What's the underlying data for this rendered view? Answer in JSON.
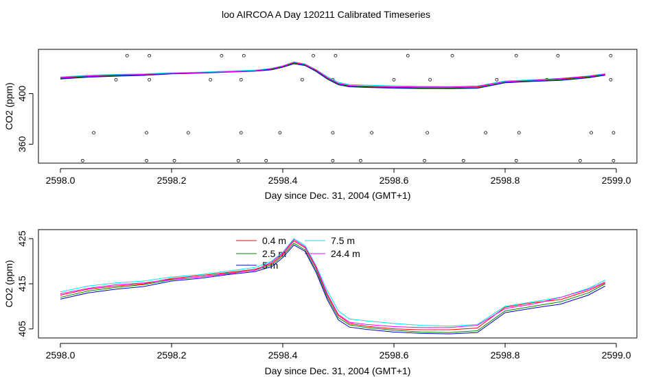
{
  "title": "loo AIRCOA A  Day 120211  Calibrated Timeseries",
  "colors": {
    "0.4 m": "#ff0000",
    "2.5 m": "#008000",
    "5 m": "#0000c8",
    "7.5 m": "#00e5ee",
    "24.4 m": "#ff00ff"
  },
  "chart_data": [
    {
      "type": "line",
      "xlabel": "Day since Dec. 31, 2004 (GMT+1)",
      "ylabel": "CO2 (ppm)",
      "xlim": [
        2598.0,
        2599.0
      ],
      "ylim": [
        345,
        435
      ],
      "xticks": [
        2598.0,
        2598.2,
        2598.4,
        2598.6,
        2598.8,
        2599.0
      ],
      "xtick_labels": [
        "2598.0",
        "2598.2",
        "2598.4",
        "2598.6",
        "2598.8",
        "2599.0"
      ],
      "yticks": [
        360,
        400
      ],
      "ytick_labels": [
        "360",
        "400"
      ],
      "x": [
        2598.0,
        2598.05,
        2598.1,
        2598.15,
        2598.2,
        2598.25,
        2598.3,
        2598.35,
        2598.38,
        2598.4,
        2598.42,
        2598.44,
        2598.46,
        2598.48,
        2598.5,
        2598.52,
        2598.55,
        2598.6,
        2598.65,
        2598.7,
        2598.75,
        2598.8,
        2598.85,
        2598.9,
        2598.95,
        2598.98
      ],
      "series": [
        {
          "name": "0.4 m",
          "values": [
            412.5,
            413.8,
            414.5,
            415.0,
            416.2,
            416.8,
            417.5,
            418.2,
            419.5,
            421.5,
            424.5,
            423.0,
            418.5,
            412.5,
            408.0,
            406.2,
            405.6,
            405.0,
            404.8,
            404.8,
            405.2,
            409.8,
            410.8,
            411.5,
            413.5,
            415.2
          ]
        },
        {
          "name": "2.5 m",
          "values": [
            412.0,
            413.4,
            414.2,
            414.8,
            415.9,
            416.5,
            417.3,
            418.0,
            419.2,
            421.2,
            424.0,
            422.5,
            418.0,
            412.0,
            407.5,
            405.9,
            405.3,
            404.7,
            404.3,
            404.2,
            404.6,
            409.0,
            410.0,
            411.0,
            413.0,
            415.0
          ]
        },
        {
          "name": "5 m",
          "values": [
            411.6,
            413.0,
            413.8,
            414.4,
            415.6,
            416.2,
            417.0,
            417.7,
            418.8,
            420.8,
            423.6,
            422.2,
            417.5,
            411.5,
            407.0,
            405.4,
            404.9,
            404.3,
            404.0,
            403.9,
            404.2,
            408.6,
            409.6,
            410.5,
            412.5,
            414.5
          ]
        },
        {
          "name": "7.5 m",
          "values": [
            413.2,
            414.5,
            415.2,
            415.6,
            416.5,
            417.0,
            417.8,
            418.6,
            420.0,
            422.0,
            425.0,
            423.5,
            419.0,
            413.5,
            409.0,
            407.2,
            406.8,
            406.2,
            405.8,
            405.6,
            406.0,
            410.0,
            411.0,
            412.0,
            414.0,
            415.8
          ]
        },
        {
          "name": "24.4 m",
          "values": [
            412.8,
            414.0,
            414.8,
            415.2,
            416.0,
            416.5,
            417.2,
            418.0,
            419.8,
            421.8,
            424.8,
            423.2,
            418.8,
            412.8,
            408.2,
            406.5,
            406.0,
            405.5,
            405.3,
            405.3,
            405.8,
            409.5,
            410.5,
            412.0,
            413.8,
            415.4
          ]
        }
      ],
      "scatter": {
        "x": [
          2598.04,
          2598.06,
          2598.1,
          2598.12,
          2598.155,
          2598.155,
          2598.16,
          2598.16,
          2598.205,
          2598.23,
          2598.27,
          2598.29,
          2598.32,
          2598.325,
          2598.325,
          2598.33,
          2598.37,
          2598.395,
          2598.435,
          2598.455,
          2598.49,
          2598.49,
          2598.49,
          2598.495,
          2598.54,
          2598.56,
          2598.6,
          2598.625,
          2598.655,
          2598.66,
          2598.665,
          2598.705,
          2598.725,
          2598.765,
          2598.785,
          2598.82,
          2598.82,
          2598.825,
          2598.875,
          2598.895,
          2598.935,
          2598.955,
          2598.99,
          2598.99,
          2598.995,
          2598.995
        ],
        "y": [
          347,
          369,
          411,
          430,
          347,
          369,
          411,
          430,
          347,
          369,
          411,
          430,
          347,
          369,
          411,
          430,
          347,
          369,
          411,
          430,
          347,
          369,
          411,
          430,
          347,
          369,
          411,
          430,
          347,
          369,
          411,
          430,
          347,
          369,
          411,
          430,
          347,
          369,
          411,
          430,
          347,
          369,
          411,
          430,
          347,
          369
        ]
      }
    },
    {
      "type": "line",
      "xlabel": "Day since Dec. 31, 2004 (GMT+1)",
      "ylabel": "CO2 (ppm)",
      "xlim": [
        2598.0,
        2599.0
      ],
      "ylim": [
        403,
        427
      ],
      "xticks": [
        2598.0,
        2598.2,
        2598.4,
        2598.6,
        2598.8,
        2599.0
      ],
      "xtick_labels": [
        "2598.0",
        "2598.2",
        "2598.4",
        "2598.6",
        "2598.8",
        "2599.0"
      ],
      "yticks": [
        405,
        415,
        425
      ],
      "ytick_labels": [
        "405",
        "415",
        "425"
      ],
      "legend": [
        "0.4 m",
        "2.5 m",
        "5 m",
        "7.5 m",
        "24.4 m"
      ],
      "x": [
        2598.0,
        2598.05,
        2598.1,
        2598.15,
        2598.2,
        2598.25,
        2598.3,
        2598.35,
        2598.38,
        2598.4,
        2598.42,
        2598.44,
        2598.46,
        2598.48,
        2598.5,
        2598.52,
        2598.55,
        2598.6,
        2598.65,
        2598.7,
        2598.75,
        2598.8,
        2598.85,
        2598.9,
        2598.95,
        2598.98
      ],
      "series": [
        {
          "name": "0.4 m",
          "values": [
            412.5,
            413.8,
            414.5,
            415.0,
            416.2,
            416.8,
            417.5,
            418.2,
            419.5,
            421.5,
            424.5,
            423.0,
            418.5,
            412.5,
            408.0,
            406.2,
            405.6,
            405.0,
            404.8,
            404.8,
            405.2,
            409.8,
            410.8,
            411.5,
            413.5,
            415.2
          ]
        },
        {
          "name": "2.5 m",
          "values": [
            412.0,
            413.4,
            414.2,
            414.8,
            415.9,
            416.5,
            417.3,
            418.0,
            419.2,
            421.2,
            424.0,
            422.5,
            418.0,
            412.0,
            407.5,
            405.9,
            405.3,
            404.7,
            404.3,
            404.2,
            404.6,
            409.0,
            410.0,
            411.0,
            413.0,
            415.0
          ]
        },
        {
          "name": "5 m",
          "values": [
            411.6,
            413.0,
            413.8,
            414.4,
            415.6,
            416.2,
            417.0,
            417.7,
            418.8,
            420.8,
            423.6,
            422.2,
            417.5,
            411.5,
            407.0,
            405.4,
            404.9,
            404.3,
            404.0,
            403.9,
            404.2,
            408.6,
            409.6,
            410.5,
            412.5,
            414.5
          ]
        },
        {
          "name": "7.5 m",
          "values": [
            413.2,
            414.5,
            415.2,
            415.6,
            416.5,
            417.0,
            417.8,
            418.6,
            420.0,
            422.0,
            425.0,
            423.5,
            419.0,
            413.5,
            409.0,
            407.2,
            406.8,
            406.2,
            405.8,
            405.6,
            406.0,
            410.0,
            411.0,
            412.0,
            414.0,
            415.8
          ]
        },
        {
          "name": "24.4 m",
          "values": [
            412.8,
            414.0,
            414.8,
            415.2,
            416.0,
            416.5,
            417.2,
            418.0,
            419.8,
            421.8,
            424.8,
            423.2,
            418.8,
            412.8,
            408.2,
            406.5,
            406.0,
            405.5,
            405.3,
            405.3,
            405.8,
            409.5,
            410.5,
            412.0,
            413.8,
            415.4
          ]
        }
      ]
    }
  ]
}
